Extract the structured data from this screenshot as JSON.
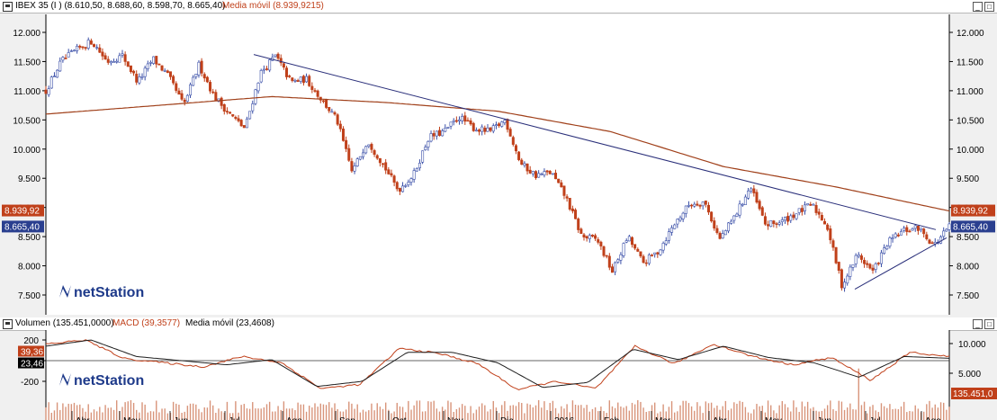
{
  "price_panel": {
    "title": "IBEX 35 (I ) (8.610,50, 8.688,60, 8.598,70, 8.665,40)",
    "ma_title": "Media móvil (8.939,9215)",
    "ma_badge": "8.939,92",
    "price_badge": "8.665,40",
    "watermark": "netStation"
  },
  "indicator_panel": {
    "title_volume": "Volumen (135.451,0000)",
    "title_macd": "MACD (39,3577)",
    "title_ma": "Media móvil (23,4608)",
    "macd_badge": "39,36",
    "signal_badge": "23,46",
    "volume_badge": "135.451,0",
    "watermark": "netStation"
  },
  "x_axis": {
    "labels": [
      "Abr",
      "May",
      "Jun",
      "Jul",
      "Ago",
      "Sep",
      "Oct",
      "Nov",
      "Dic",
      "2016",
      "Feb",
      "Mar",
      "Abr",
      "May",
      "Jun",
      "Jul",
      "Ago"
    ]
  },
  "chart_data": [
    {
      "type": "candlestick",
      "title": "IBEX 35 (I ) (8.610,50, 8.688,60, 8.598,70, 8.665,40)",
      "y_ticks": [
        "12.000",
        "11.500",
        "11.000",
        "10.500",
        "10.000",
        "9.500",
        "9.000",
        "8.500",
        "8.000",
        "7.500"
      ],
      "ylim": [
        7250,
        12250
      ],
      "grid": false,
      "close_anchors": [
        {
          "x": "Mar 2015",
          "y": 11000
        },
        {
          "x": "Mar 2015",
          "y": 11500
        },
        {
          "x": "Abr",
          "y": 11700
        },
        {
          "x": "Abr",
          "y": 11850
        },
        {
          "x": "Abr",
          "y": 11500
        },
        {
          "x": "May",
          "y": 11600
        },
        {
          "x": "May",
          "y": 11150
        },
        {
          "x": "May",
          "y": 11550
        },
        {
          "x": "May",
          "y": 11250
        },
        {
          "x": "Jun",
          "y": 10750
        },
        {
          "x": "Jun",
          "y": 11450
        },
        {
          "x": "Jun",
          "y": 10900
        },
        {
          "x": "Jun",
          "y": 10600
        },
        {
          "x": "Jul",
          "y": 10350
        },
        {
          "x": "Jul",
          "y": 11300
        },
        {
          "x": "Jul",
          "y": 11600
        },
        {
          "x": "Jul",
          "y": 11150
        },
        {
          "x": "Ago",
          "y": 11200
        },
        {
          "x": "Ago",
          "y": 10850
        },
        {
          "x": "Ago",
          "y": 10500
        },
        {
          "x": "Ago",
          "y": 9600
        },
        {
          "x": "Sep",
          "y": 10150
        },
        {
          "x": "Sep",
          "y": 9750
        },
        {
          "x": "Sep",
          "y": 9300
        },
        {
          "x": "Oct",
          "y": 9550
        },
        {
          "x": "Oct",
          "y": 10200
        },
        {
          "x": "Oct",
          "y": 10300
        },
        {
          "x": "Nov",
          "y": 10550
        },
        {
          "x": "Nov",
          "y": 10350
        },
        {
          "x": "Nov",
          "y": 10300
        },
        {
          "x": "Dic",
          "y": 10500
        },
        {
          "x": "Dic",
          "y": 9750
        },
        {
          "x": "Dic",
          "y": 9550
        },
        {
          "x": "Dic",
          "y": 9600
        },
        {
          "x": "2016",
          "y": 9150
        },
        {
          "x": "2016",
          "y": 8500
        },
        {
          "x": "2016",
          "y": 8450
        },
        {
          "x": "Feb",
          "y": 7900
        },
        {
          "x": "Feb",
          "y": 8500
        },
        {
          "x": "Feb",
          "y": 8050
        },
        {
          "x": "Feb",
          "y": 8250
        },
        {
          "x": "Mar",
          "y": 8700
        },
        {
          "x": "Mar",
          "y": 9050
        },
        {
          "x": "Mar",
          "y": 9100
        },
        {
          "x": "Abr",
          "y": 8450
        },
        {
          "x": "Abr",
          "y": 8850
        },
        {
          "x": "Abr",
          "y": 9350
        },
        {
          "x": "May",
          "y": 8700
        },
        {
          "x": "May",
          "y": 8750
        },
        {
          "x": "May",
          "y": 8900
        },
        {
          "x": "Jun",
          "y": 9050
        },
        {
          "x": "Jun",
          "y": 8700
        },
        {
          "x": "Jun",
          "y": 7650
        },
        {
          "x": "Jun",
          "y": 8200
        },
        {
          "x": "Jul",
          "y": 7900
        },
        {
          "x": "Jul",
          "y": 8400
        },
        {
          "x": "Jul",
          "y": 8600
        },
        {
          "x": "Jul",
          "y": 8650
        },
        {
          "x": "Ago",
          "y": 8350
        },
        {
          "x": "Ago",
          "y": 8665
        }
      ],
      "moving_average": {
        "name": "Media móvil",
        "anchors": [
          {
            "x": "Mar 2015",
            "y": 10600
          },
          {
            "x": "Jun",
            "y": 10750
          },
          {
            "x": "Ago",
            "y": 10900
          },
          {
            "x": "Nov",
            "y": 10800
          },
          {
            "x": "Dic",
            "y": 10650
          },
          {
            "x": "2016",
            "y": 10300
          },
          {
            "x": "Mar",
            "y": 9700
          },
          {
            "x": "May",
            "y": 9350
          },
          {
            "x": "Ago",
            "y": 8940
          }
        ]
      },
      "trendlines": [
        {
          "from": {
            "x": "Jul",
            "y": 11620
          },
          "to": {
            "x": "Ago",
            "y": 8600
          }
        },
        {
          "from": {
            "x": "Jun",
            "y": 7600
          },
          "to": {
            "x": "Ago",
            "y": 8450
          }
        }
      ]
    },
    {
      "type": "bar+line",
      "series": [
        {
          "name": "Volumen",
          "axis": "right",
          "y_ticks": [
            "10.000",
            "5.000"
          ]
        },
        {
          "name": "MACD",
          "axis": "left",
          "y_ticks": [
            "200",
            "0",
            "-200"
          ],
          "anchors": [
            {
              "x": "Mar 2015",
              "y": 160
            },
            {
              "x": "Abr",
              "y": 200
            },
            {
              "x": "May",
              "y": 20
            },
            {
              "x": "Jun",
              "y": -20
            },
            {
              "x": "Jul",
              "y": -60
            },
            {
              "x": "Jul",
              "y": 40
            },
            {
              "x": "Ago",
              "y": -20
            },
            {
              "x": "Sep",
              "y": -270
            },
            {
              "x": "Oct",
              "y": -230
            },
            {
              "x": "Oct",
              "y": 120
            },
            {
              "x": "Nov",
              "y": 70
            },
            {
              "x": "Dic",
              "y": -30
            },
            {
              "x": "2016",
              "y": -280
            },
            {
              "x": "Feb",
              "y": -200
            },
            {
              "x": "Feb",
              "y": -270
            },
            {
              "x": "Mar",
              "y": 140
            },
            {
              "x": "Abr",
              "y": -30
            },
            {
              "x": "Abr",
              "y": 160
            },
            {
              "x": "May",
              "y": 40
            },
            {
              "x": "May",
              "y": -40
            },
            {
              "x": "Jun",
              "y": 30
            },
            {
              "x": "Jun",
              "y": -190
            },
            {
              "x": "Jul",
              "y": 80
            },
            {
              "x": "Ago",
              "y": 39
            }
          ]
        },
        {
          "name": "Media móvil",
          "axis": "left",
          "anchors": [
            {
              "x": "Mar 2015",
              "y": 140
            },
            {
              "x": "Abr",
              "y": 200
            },
            {
              "x": "May",
              "y": 40
            },
            {
              "x": "Jun",
              "y": 0
            },
            {
              "x": "Jul",
              "y": -40
            },
            {
              "x": "Ago",
              "y": 10
            },
            {
              "x": "Sep",
              "y": -250
            },
            {
              "x": "Oct",
              "y": -200
            },
            {
              "x": "Oct",
              "y": 80
            },
            {
              "x": "Nov",
              "y": 80
            },
            {
              "x": "Dic",
              "y": -20
            },
            {
              "x": "2016",
              "y": -260
            },
            {
              "x": "Feb",
              "y": -210
            },
            {
              "x": "Mar",
              "y": 110
            },
            {
              "x": "Abr",
              "y": 10
            },
            {
              "x": "Abr",
              "y": 140
            },
            {
              "x": "May",
              "y": 30
            },
            {
              "x": "Jun",
              "y": -20
            },
            {
              "x": "Jun",
              "y": -160
            },
            {
              "x": "Jul",
              "y": 40
            },
            {
              "x": "Ago",
              "y": 23
            }
          ]
        }
      ],
      "ylim_macd": [
        -300,
        230
      ],
      "ylim_volume": [
        0,
        11000
      ]
    }
  ],
  "colors": {
    "candle_up": "#3a4fa8",
    "candle_down": "#c0401a",
    "moving_average": "#a0401a",
    "trendline": "#2a2f7a",
    "volume": "#d8947a",
    "macd": "#c0401a",
    "signal": "#1e1e1e",
    "badge_red": "#c0401a",
    "badge_blue": "#2a3f8f",
    "badge_black": "#000000"
  }
}
